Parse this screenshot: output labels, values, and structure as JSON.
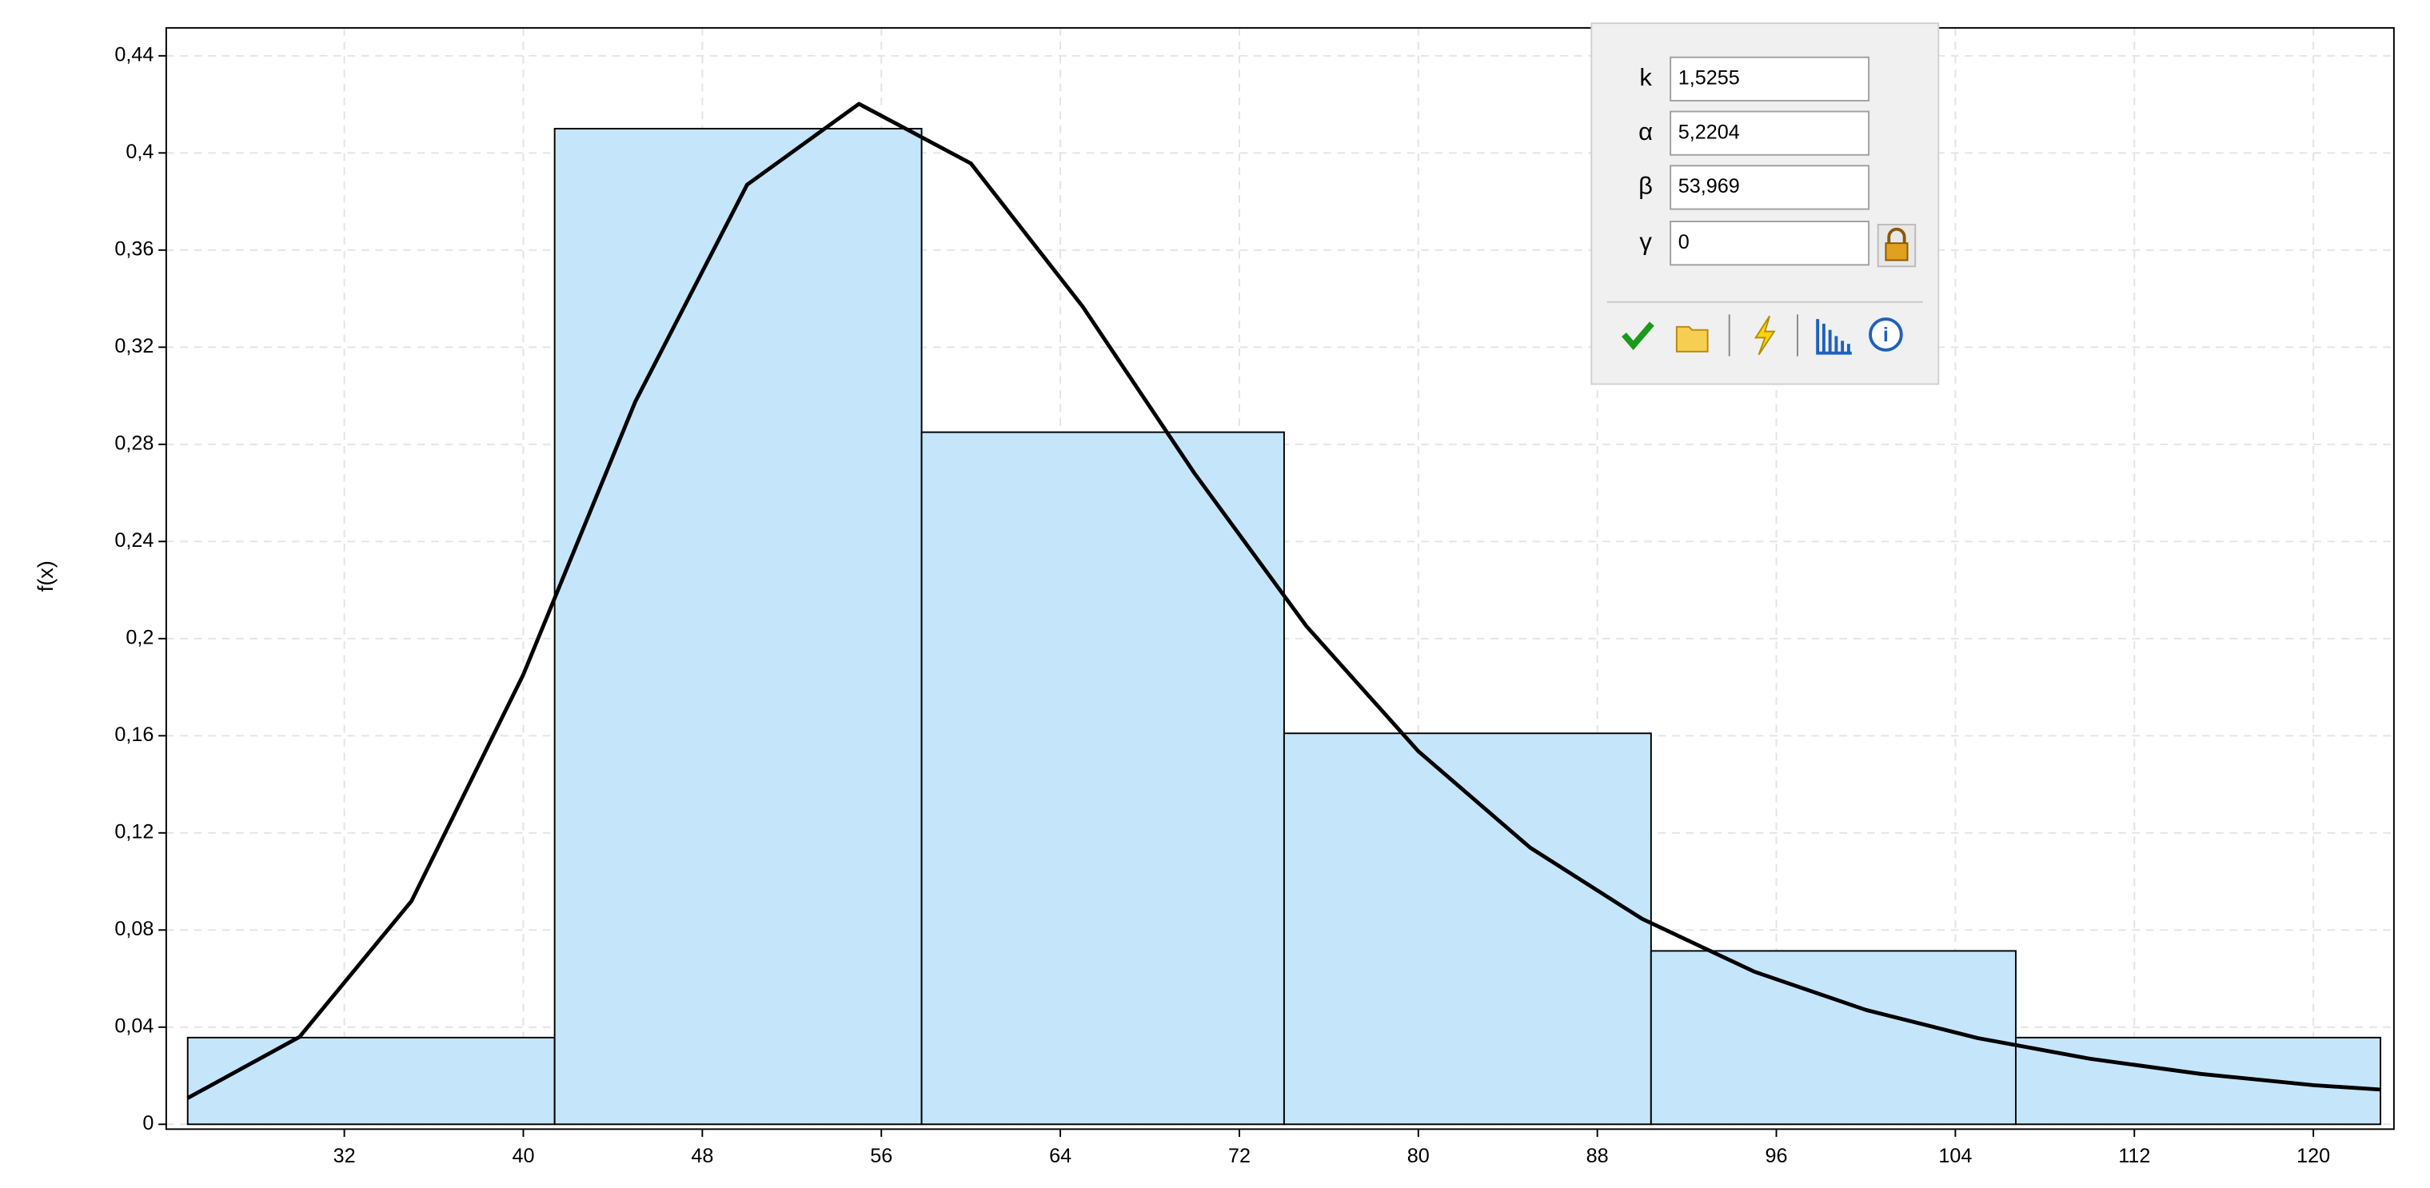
{
  "chart_data": {
    "type": "histogram",
    "ylabel": "f(x)",
    "bins": [
      25.0,
      41.4,
      57.8,
      74.0,
      90.4,
      106.7,
      123.0
    ],
    "values": [
      0.0357,
      0.41,
      0.285,
      0.161,
      0.0714,
      0.0357
    ],
    "color": "#c5e5fb",
    "curve": {
      "color": "#000000",
      "x": [
        25,
        30,
        35,
        40,
        45,
        50,
        55,
        60,
        65,
        70,
        75,
        80,
        85,
        90,
        95,
        100,
        105,
        110,
        115,
        120,
        123
      ],
      "values": [
        0.0108,
        0.036,
        0.0919,
        0.1852,
        0.2975,
        0.3869,
        0.4202,
        0.3957,
        0.3367,
        0.268,
        0.2051,
        0.1536,
        0.1139,
        0.0846,
        0.0629,
        0.0471,
        0.0355,
        0.027,
        0.0207,
        0.0161,
        0.0143
      ]
    },
    "xlim": [
      24.04,
      123.6
    ],
    "xticks": [
      32,
      40,
      48,
      56,
      64,
      72,
      80,
      88,
      96,
      104,
      112,
      120
    ],
    "ylim": [
      -0.002,
      0.4515
    ],
    "yticks": [
      0,
      {
        "value": 0.04,
        "label": "0,04"
      },
      {
        "value": 0.08,
        "label": "0,08"
      },
      {
        "value": 0.12,
        "label": "0,12"
      },
      {
        "value": 0.16,
        "label": "0,16"
      },
      {
        "value": 0.2,
        "label": "0,2"
      },
      {
        "value": 0.24,
        "label": "0,24"
      },
      {
        "value": 0.28,
        "label": "0,28"
      },
      {
        "value": 0.32,
        "label": "0,32"
      },
      {
        "value": 0.36,
        "label": "0,36"
      },
      {
        "value": 0.4,
        "label": "0,4"
      },
      {
        "value": 0.44,
        "label": "0,44"
      }
    ],
    "grid": true
  },
  "panel": {
    "parameters": [
      {
        "label": "k",
        "value": "1,5255"
      },
      {
        "label": "α",
        "value": "5,2204"
      },
      {
        "label": "β",
        "value": "53,969"
      },
      {
        "label": "γ",
        "value": "0"
      }
    ]
  }
}
